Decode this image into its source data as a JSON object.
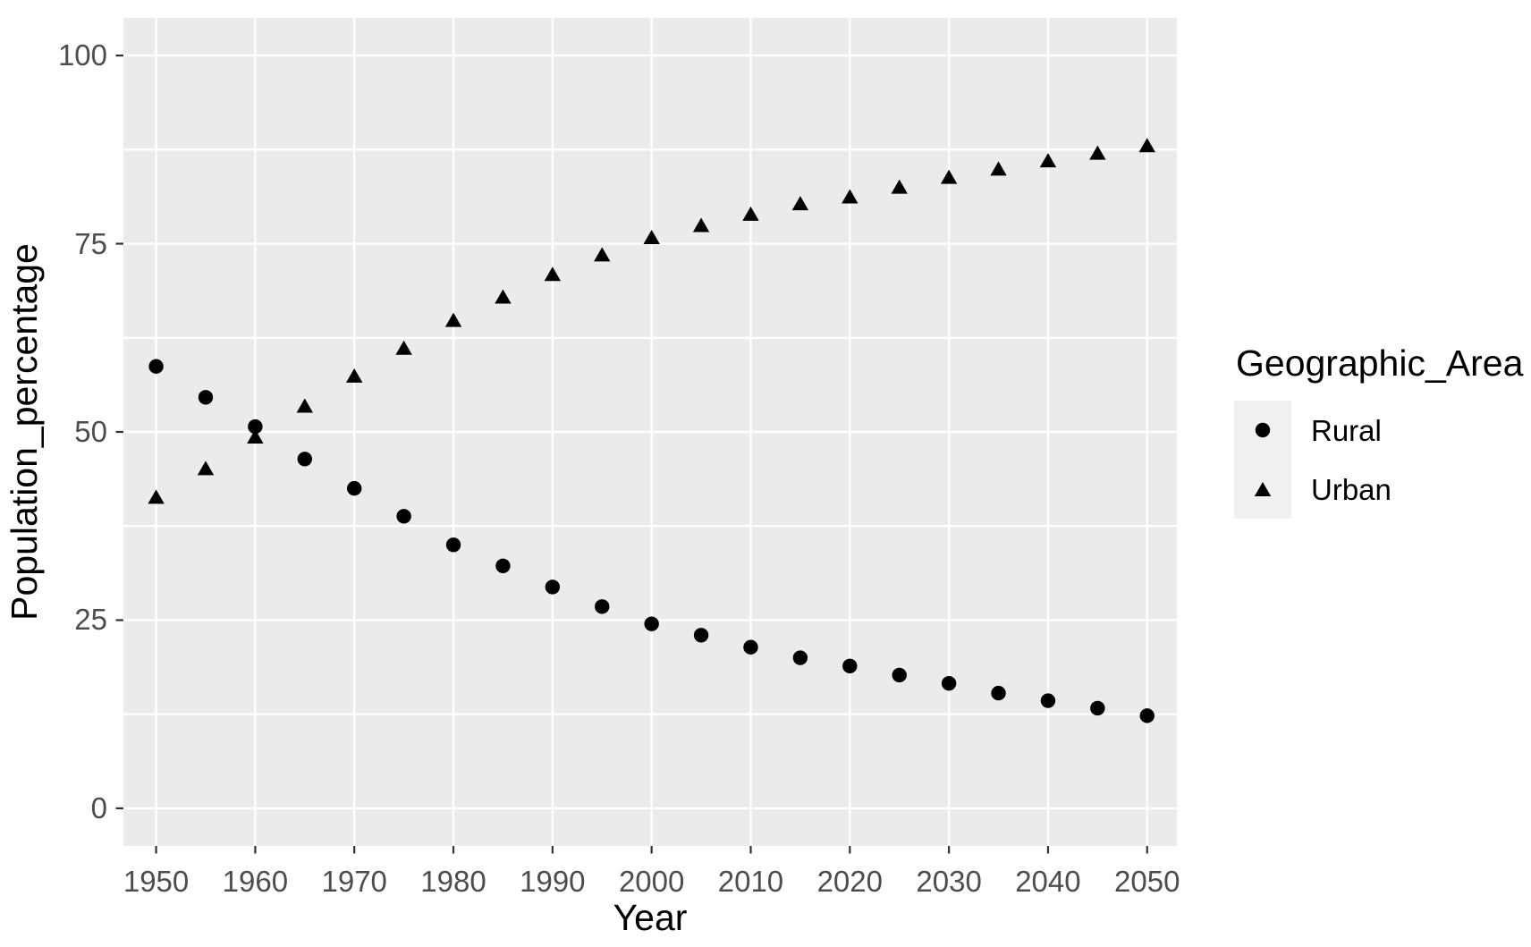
{
  "figure": {
    "background": "#ffffff"
  },
  "chart_data": {
    "type": "scatter",
    "title": "",
    "xlabel": "Year",
    "ylabel": "Population_percentage",
    "x": [
      1950,
      1955,
      1960,
      1965,
      1970,
      1975,
      1980,
      1985,
      1990,
      1995,
      2000,
      2005,
      2010,
      2015,
      2020,
      2025,
      2030,
      2035,
      2040,
      2045,
      2050
    ],
    "series": [
      {
        "name": "Rural",
        "marker": "circle",
        "values": [
          58.7,
          54.6,
          50.7,
          46.4,
          42.5,
          38.8,
          35.0,
          32.2,
          29.4,
          26.8,
          24.5,
          23.0,
          21.4,
          20.0,
          18.9,
          17.7,
          16.6,
          15.3,
          14.3,
          13.3,
          12.3
        ]
      },
      {
        "name": "Urban",
        "marker": "triangle",
        "values": [
          41.4,
          45.2,
          49.4,
          53.5,
          57.5,
          61.2,
          64.9,
          68.0,
          71.0,
          73.6,
          75.9,
          77.5,
          79.0,
          80.4,
          81.3,
          82.6,
          83.9,
          85.0,
          86.1,
          87.1,
          88.1
        ]
      }
    ],
    "xlim": [
      1946.7,
      2053.0
    ],
    "ylim": [
      -5,
      105
    ],
    "x_tick_values": [
      1950,
      1960,
      1970,
      1980,
      1990,
      2000,
      2010,
      2020,
      2030,
      2040,
      2050
    ],
    "x_tick_labels": [
      "1950",
      "1960",
      "1970",
      "1980",
      "1990",
      "2000",
      "2010",
      "2020",
      "2030",
      "2040",
      "2050"
    ],
    "y_tick_values": [
      0,
      25,
      50,
      75,
      100
    ],
    "y_tick_labels": [
      "0",
      "25",
      "50",
      "75",
      "100"
    ],
    "y_gridlines": [
      0,
      12.5,
      25,
      37.5,
      50,
      62.5,
      75,
      87.5,
      100
    ],
    "x_gridlines": [
      1950,
      1960,
      1970,
      1980,
      1990,
      2000,
      2010,
      2020,
      2030,
      2040,
      2050
    ],
    "grid": "on",
    "legend": {
      "position": "right",
      "title": "Geographic_Area",
      "items": [
        {
          "label": "Rural",
          "marker": "circle"
        },
        {
          "label": "Urban",
          "marker": "triangle"
        }
      ]
    },
    "colors": {
      "background": "#ffffff",
      "panel_bg": "#ebebeb",
      "grid": "#ffffff",
      "marker": "#000000",
      "tick_mark": "#333333",
      "tick_label": "#4d4d4d",
      "axis_title": "#000000",
      "legend_key_bg": "#f0f0f0"
    }
  }
}
